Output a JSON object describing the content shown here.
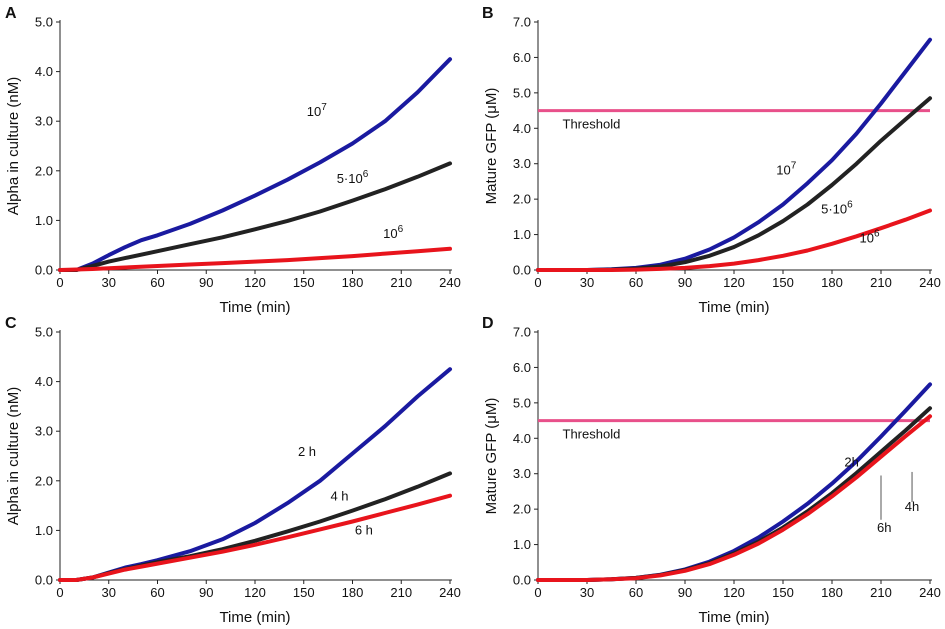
{
  "chart_data": [
    {
      "panel": "A",
      "type": "line",
      "xlabel": "Time (min)",
      "ylabel": "Alpha in culture (nM)",
      "xlim": [
        0,
        240
      ],
      "ylim": [
        0,
        5
      ],
      "xticks": [
        "0",
        "30",
        "60",
        "90",
        "120",
        "150",
        "180",
        "210",
        "240"
      ],
      "yticks": [
        "0.0",
        "1.0",
        "2.0",
        "3.0",
        "4.0",
        "5.0"
      ],
      "series": [
        {
          "name": "10^7",
          "base": "10",
          "exp": "7",
          "color": "#1a1aa0",
          "x": [
            0,
            10,
            20,
            30,
            40,
            50,
            60,
            80,
            100,
            120,
            140,
            160,
            180,
            200,
            220,
            240
          ],
          "y": [
            0.0,
            0.0,
            0.13,
            0.3,
            0.46,
            0.6,
            0.7,
            0.93,
            1.2,
            1.5,
            1.82,
            2.17,
            2.55,
            3.0,
            3.58,
            4.25
          ]
        },
        {
          "name": "5·10^6",
          "base": "5·10",
          "exp": "6",
          "color": "#222222",
          "x": [
            0,
            10,
            20,
            30,
            40,
            60,
            80,
            100,
            120,
            140,
            160,
            180,
            200,
            220,
            240
          ],
          "y": [
            0.0,
            0.0,
            0.08,
            0.17,
            0.24,
            0.38,
            0.52,
            0.66,
            0.82,
            0.99,
            1.18,
            1.4,
            1.63,
            1.88,
            2.15
          ]
        },
        {
          "name": "10^6",
          "base": "10",
          "exp": "6",
          "color": "#e8141c",
          "x": [
            0,
            20,
            40,
            60,
            80,
            100,
            120,
            140,
            160,
            180,
            200,
            220,
            240
          ],
          "y": [
            0.0,
            0.02,
            0.05,
            0.08,
            0.11,
            0.14,
            0.17,
            0.2,
            0.24,
            0.28,
            0.33,
            0.38,
            0.43
          ]
        }
      ],
      "annotations": [
        {
          "series": 0,
          "x": 158,
          "y": 3.1
        },
        {
          "series": 1,
          "x": 180,
          "y": 1.75
        },
        {
          "series": 2,
          "x": 205,
          "y": 0.65
        }
      ]
    },
    {
      "panel": "B",
      "type": "line",
      "xlabel": "Time (min)",
      "ylabel": "Mature GFP (μM)",
      "xlim": [
        0,
        240
      ],
      "ylim": [
        0,
        7
      ],
      "xticks": [
        "0",
        "30",
        "60",
        "90",
        "120",
        "150",
        "180",
        "210",
        "240"
      ],
      "yticks": [
        "0.0",
        "1.0",
        "2.0",
        "3.0",
        "4.0",
        "5.0",
        "6.0",
        "7.0"
      ],
      "threshold": {
        "label": "Threshold",
        "value": 4.5,
        "color": "#e8508a"
      },
      "series": [
        {
          "name": "10^7",
          "base": "10",
          "exp": "7",
          "color": "#1a1aa0",
          "x": [
            0,
            30,
            45,
            60,
            75,
            90,
            105,
            120,
            135,
            150,
            165,
            180,
            195,
            210,
            225,
            240
          ],
          "y": [
            0.0,
            0.0,
            0.02,
            0.06,
            0.15,
            0.32,
            0.58,
            0.92,
            1.35,
            1.85,
            2.45,
            3.1,
            3.85,
            4.7,
            5.6,
            6.5
          ]
        },
        {
          "name": "5·10^6",
          "base": "5·10",
          "exp": "6",
          "color": "#222222",
          "x": [
            0,
            30,
            45,
            60,
            75,
            90,
            105,
            120,
            135,
            150,
            165,
            180,
            195,
            210,
            225,
            240
          ],
          "y": [
            0.0,
            0.0,
            0.01,
            0.04,
            0.1,
            0.22,
            0.4,
            0.65,
            0.98,
            1.38,
            1.85,
            2.4,
            3.0,
            3.65,
            4.25,
            4.85
          ]
        },
        {
          "name": "10^6",
          "base": "10",
          "exp": "6",
          "color": "#e8141c",
          "x": [
            0,
            45,
            60,
            75,
            90,
            105,
            120,
            135,
            150,
            165,
            180,
            195,
            210,
            225,
            240
          ],
          "y": [
            0.0,
            0.0,
            0.01,
            0.03,
            0.06,
            0.11,
            0.18,
            0.28,
            0.4,
            0.55,
            0.74,
            0.95,
            1.18,
            1.42,
            1.68
          ]
        }
      ],
      "annotations": [
        {
          "series": 0,
          "x": 152,
          "y": 2.7
        },
        {
          "series": 1,
          "x": 183,
          "y": 1.6
        },
        {
          "series": 2,
          "x": 203,
          "y": 0.78
        }
      ]
    },
    {
      "panel": "C",
      "type": "line",
      "xlabel": "Time (min)",
      "ylabel": "Alpha in culture (nM)",
      "xlim": [
        0,
        240
      ],
      "ylim": [
        0,
        5
      ],
      "xticks": [
        "0",
        "30",
        "60",
        "90",
        "120",
        "150",
        "180",
        "210",
        "240"
      ],
      "yticks": [
        "0.0",
        "1.0",
        "2.0",
        "3.0",
        "4.0",
        "5.0"
      ],
      "series": [
        {
          "name": "2 h",
          "color": "#1a1aa0",
          "x": [
            0,
            10,
            20,
            30,
            40,
            50,
            60,
            80,
            100,
            120,
            140,
            160,
            180,
            200,
            220,
            240
          ],
          "y": [
            0.0,
            0.0,
            0.05,
            0.15,
            0.25,
            0.32,
            0.4,
            0.58,
            0.82,
            1.15,
            1.55,
            2.0,
            2.55,
            3.1,
            3.7,
            4.25
          ]
        },
        {
          "name": "4 h",
          "color": "#222222",
          "x": [
            0,
            10,
            20,
            30,
            40,
            50,
            60,
            80,
            100,
            120,
            140,
            160,
            180,
            200,
            220,
            240
          ],
          "y": [
            0.0,
            0.0,
            0.05,
            0.14,
            0.22,
            0.29,
            0.36,
            0.48,
            0.62,
            0.79,
            0.98,
            1.18,
            1.4,
            1.63,
            1.88,
            2.15
          ]
        },
        {
          "name": "6 h",
          "color": "#e8141c",
          "x": [
            0,
            10,
            20,
            30,
            40,
            50,
            60,
            80,
            100,
            120,
            140,
            160,
            180,
            200,
            220,
            240
          ],
          "y": [
            0.0,
            0.0,
            0.05,
            0.13,
            0.21,
            0.27,
            0.33,
            0.45,
            0.57,
            0.71,
            0.86,
            1.02,
            1.18,
            1.35,
            1.52,
            1.7
          ]
        }
      ],
      "annotations": [
        {
          "series": 0,
          "x": 152,
          "y": 2.5
        },
        {
          "series": 1,
          "x": 172,
          "y": 1.6
        },
        {
          "series": 2,
          "x": 187,
          "y": 0.92
        }
      ]
    },
    {
      "panel": "D",
      "type": "line",
      "xlabel": "Time (min)",
      "ylabel": "Mature GFP (μM)",
      "xlim": [
        0,
        240
      ],
      "ylim": [
        0,
        7
      ],
      "xticks": [
        "0",
        "30",
        "60",
        "90",
        "120",
        "150",
        "180",
        "210",
        "240"
      ],
      "yticks": [
        "0.0",
        "1.0",
        "2.0",
        "3.0",
        "4.0",
        "5.0",
        "6.0",
        "7.0"
      ],
      "threshold": {
        "label": "Threshold",
        "value": 4.5,
        "color": "#e8508a"
      },
      "series": [
        {
          "name": "2h",
          "color": "#1a1aa0",
          "x": [
            0,
            30,
            45,
            60,
            75,
            90,
            105,
            120,
            135,
            150,
            165,
            180,
            195,
            210,
            225,
            240
          ],
          "y": [
            0.0,
            0.0,
            0.02,
            0.06,
            0.15,
            0.3,
            0.52,
            0.82,
            1.2,
            1.65,
            2.15,
            2.72,
            3.35,
            4.05,
            4.78,
            5.52
          ]
        },
        {
          "name": "4h",
          "color": "#222222",
          "x": [
            0,
            30,
            45,
            60,
            75,
            90,
            105,
            120,
            135,
            150,
            165,
            180,
            195,
            210,
            225,
            240
          ],
          "y": [
            0.0,
            0.0,
            0.02,
            0.06,
            0.14,
            0.28,
            0.48,
            0.75,
            1.08,
            1.48,
            1.94,
            2.45,
            3.02,
            3.62,
            4.22,
            4.85
          ]
        },
        {
          "name": "6h",
          "color": "#e8141c",
          "x": [
            0,
            30,
            45,
            60,
            75,
            90,
            105,
            120,
            135,
            150,
            165,
            180,
            195,
            210,
            225,
            240
          ],
          "y": [
            0.0,
            0.0,
            0.02,
            0.05,
            0.13,
            0.26,
            0.45,
            0.71,
            1.03,
            1.42,
            1.86,
            2.36,
            2.9,
            3.48,
            4.06,
            4.62
          ]
        }
      ],
      "annotations": [
        {
          "series": 0,
          "x": 192,
          "y": 3.2
        },
        {
          "series": 1,
          "x": 229,
          "y": 1.95,
          "leader": [
            229,
            3.05,
            229,
            2.2
          ]
        },
        {
          "series": 2,
          "x": 212,
          "y": 1.35,
          "leader": [
            210,
            2.95,
            210,
            1.7
          ]
        }
      ]
    }
  ]
}
